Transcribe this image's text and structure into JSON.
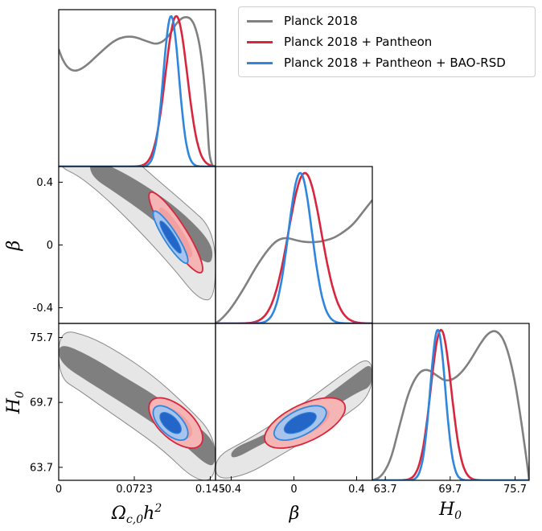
{
  "chart_data": {
    "type": "triangle-corner-plot",
    "parameters": [
      {
        "id": "omega",
        "label": "Ωc,0h²",
        "range": [
          0,
          0.15
        ],
        "ticks": [
          {
            "value": 0,
            "label": "0"
          },
          {
            "value": 0.0723,
            "label": "0.0723"
          },
          {
            "value": 0.145,
            "label": "0.145"
          }
        ]
      },
      {
        "id": "beta",
        "label": "β",
        "range": [
          -0.5,
          0.5
        ],
        "ticks": [
          {
            "value": -0.4,
            "label": "-0.4"
          },
          {
            "value": 0,
            "label": "0"
          },
          {
            "value": 0.4,
            "label": "0.4"
          }
        ]
      },
      {
        "id": "H0",
        "label": "H0",
        "range": [
          62.5,
          77
        ],
        "ticks": [
          {
            "value": 63.7,
            "label": "63.7"
          },
          {
            "value": 69.7,
            "label": "69.7"
          },
          {
            "value": 75.7,
            "label": "75.7"
          }
        ]
      }
    ],
    "series": [
      {
        "name": "Planck 2018",
        "color": "#808080",
        "fill_68": "#7f7f7f",
        "fill_95": "#e6e6e6",
        "edge": "#888888",
        "marginals": {
          "omega": {
            "x": [
              0,
              0.003,
              0.008,
              0.015,
              0.025,
              0.04,
              0.055,
              0.07,
              0.085,
              0.095,
              0.105,
              0.112,
              0.12,
              0.128,
              0.134,
              0.138,
              0.141,
              0.143,
              0.144,
              0.147,
              0.15
            ],
            "y": [
              0.78,
              0.72,
              0.66,
              0.63,
              0.66,
              0.76,
              0.85,
              0.87,
              0.83,
              0.81,
              0.86,
              0.95,
              1.0,
              0.98,
              0.85,
              0.65,
              0.42,
              0.2,
              0.08,
              0,
              0
            ]
          },
          "beta": {
            "x": [
              -0.5,
              -0.46,
              -0.4,
              -0.32,
              -0.24,
              -0.16,
              -0.1,
              -0.04,
              0.02,
              0.08,
              0.14,
              0.2,
              0.26,
              0.32,
              0.38,
              0.44,
              0.5
            ],
            "y": [
              0,
              0.03,
              0.1,
              0.23,
              0.38,
              0.5,
              0.56,
              0.57,
              0.55,
              0.54,
              0.54,
              0.55,
              0.57,
              0.61,
              0.66,
              0.74,
              0.82
            ]
          },
          "H0": {
            "x": [
              62.5,
              63.3,
              64.2,
              65.0,
              65.9,
              66.8,
              67.6,
              68.4,
              69.2,
              70.0,
              70.8,
              71.6,
              72.4,
              73.2,
              74.0,
              74.8,
              75.6,
              76.3,
              76.8,
              77.0
            ],
            "y": [
              0,
              0.02,
              0.13,
              0.36,
              0.6,
              0.72,
              0.74,
              0.7,
              0.66,
              0.67,
              0.72,
              0.8,
              0.9,
              0.98,
              1.0,
              0.92,
              0.7,
              0.38,
              0.12,
              0
            ]
          }
        },
        "contours_68": {
          "omega-beta": [
            [
              0.03,
              0.56
            ],
            [
              0.06,
              0.47
            ],
            [
              0.09,
              0.35
            ],
            [
              0.12,
              0.2
            ],
            [
              0.147,
              0.01
            ],
            [
              0.147,
              -0.12
            ],
            [
              0.136,
              -0.1
            ],
            [
              0.112,
              0.04
            ],
            [
              0.085,
              0.19
            ],
            [
              0.055,
              0.33
            ],
            [
              0.03,
              0.44
            ]
          ],
          "omega-H0": [
            [
              0.0,
              75.3
            ],
            [
              0.03,
              74.0
            ],
            [
              0.06,
              72.2
            ],
            [
              0.09,
              70.5
            ],
            [
              0.12,
              68.4
            ],
            [
              0.15,
              66.2
            ],
            [
              0.15,
              63.8
            ],
            [
              0.14,
              64.0
            ],
            [
              0.12,
              65.8
            ],
            [
              0.09,
              67.8
            ],
            [
              0.06,
              69.7
            ],
            [
              0.03,
              71.5
            ],
            [
              0.0,
              73.4
            ]
          ],
          "beta-H0": [
            [
              -0.4,
              65.4
            ],
            [
              -0.2,
              66.6
            ],
            [
              0.0,
              68.3
            ],
            [
              0.2,
              70.2
            ],
            [
              0.4,
              72.4
            ],
            [
              0.5,
              73.4
            ],
            [
              0.5,
              71.2
            ],
            [
              0.4,
              70.6
            ],
            [
              0.2,
              68.8
            ],
            [
              0.0,
              67.2
            ],
            [
              -0.2,
              65.9
            ],
            [
              -0.4,
              64.3
            ]
          ]
        },
        "contours_95": {
          "omega-beta": [
            [
              0.0,
              0.62
            ],
            [
              0.06,
              0.62
            ],
            [
              0.09,
              0.44
            ],
            [
              0.12,
              0.27
            ],
            [
              0.15,
              0.09
            ],
            [
              0.15,
              -0.35
            ],
            [
              0.134,
              -0.35
            ],
            [
              0.11,
              -0.15
            ],
            [
              0.08,
              0.07
            ],
            [
              0.05,
              0.27
            ],
            [
              0.02,
              0.44
            ],
            [
              0.0,
              0.5
            ]
          ],
          "omega-H0": [
            [
              0.0,
              76.5
            ],
            [
              0.03,
              75.8
            ],
            [
              0.06,
              74.2
            ],
            [
              0.09,
              72.2
            ],
            [
              0.12,
              69.6
            ],
            [
              0.15,
              66.6
            ],
            [
              0.15,
              62.5
            ],
            [
              0.13,
              62.5
            ],
            [
              0.1,
              65.3
            ],
            [
              0.07,
              67.4
            ],
            [
              0.04,
              69.4
            ],
            [
              0.02,
              70.8
            ],
            [
              0.0,
              72.0
            ]
          ],
          "beta-H0": [
            [
              -0.5,
              64.7
            ],
            [
              -0.3,
              66.2
            ],
            [
              -0.1,
              68.0
            ],
            [
              0.1,
              70.0
            ],
            [
              0.3,
              72.2
            ],
            [
              0.5,
              74.2
            ],
            [
              0.5,
              70.4
            ],
            [
              0.3,
              68.2
            ],
            [
              0.1,
              66.4
            ],
            [
              -0.1,
              64.7
            ],
            [
              -0.3,
              63.0
            ],
            [
              -0.5,
              62.5
            ]
          ]
        }
      },
      {
        "name": "Planck 2018 + Pantheon",
        "color": "#d7263d",
        "fill_68": "#f2a0a0",
        "fill_95": "#f5b5b5",
        "edge": "#d7263d",
        "marginals": {
          "omega": {
            "mean": 0.1125,
            "sigma": 0.0105
          },
          "beta": {
            "mean": 0.07,
            "sigma": 0.105
          },
          "H0": {
            "mean": 68.85,
            "sigma": 0.95
          }
        },
        "ellipses": {
          "omega-beta": {
            "center": [
              0.112,
              0.08
            ],
            "sx": 0.0105,
            "sy": 0.105,
            "rho": -0.9
          },
          "omega-H0": {
            "center": [
              0.112,
              67.8
            ],
            "sx": 0.0105,
            "sy": 0.95,
            "rho": -0.6
          },
          "beta-H0": {
            "center": [
              0.07,
              67.8
            ],
            "sx": 0.105,
            "sy": 0.95,
            "rho": 0.6
          }
        }
      },
      {
        "name": "Planck 2018 + Pantheon + BAO-RSD",
        "color": "#2e86de",
        "fill_68": "#2466c8",
        "fill_95": "#a9c4ec",
        "edge": "#2e86de",
        "marginals": {
          "omega": {
            "mean": 0.1075,
            "sigma": 0.0075
          },
          "beta": {
            "mean": 0.04,
            "sigma": 0.075
          },
          "H0": {
            "mean": 68.55,
            "sigma": 0.7
          }
        },
        "ellipses": {
          "omega-beta": {
            "center": [
              0.107,
              0.05
            ],
            "sx": 0.0068,
            "sy": 0.068,
            "rho": -0.9
          },
          "omega-H0": {
            "center": [
              0.107,
              67.8
            ],
            "sx": 0.0068,
            "sy": 0.65,
            "rho": -0.6
          },
          "beta-H0": {
            "center": [
              0.04,
              67.8
            ],
            "sx": 0.068,
            "sy": 0.65,
            "rho": 0.6
          }
        }
      }
    ],
    "legend": {
      "placement": "top-right",
      "entries": [
        "Planck 2018",
        "Planck 2018 + Pantheon",
        "Planck 2018 + Pantheon + BAO-RSD"
      ]
    },
    "axis_labels": {
      "omega": "Ωc,0h²",
      "beta": "β",
      "H0": "H0"
    }
  }
}
